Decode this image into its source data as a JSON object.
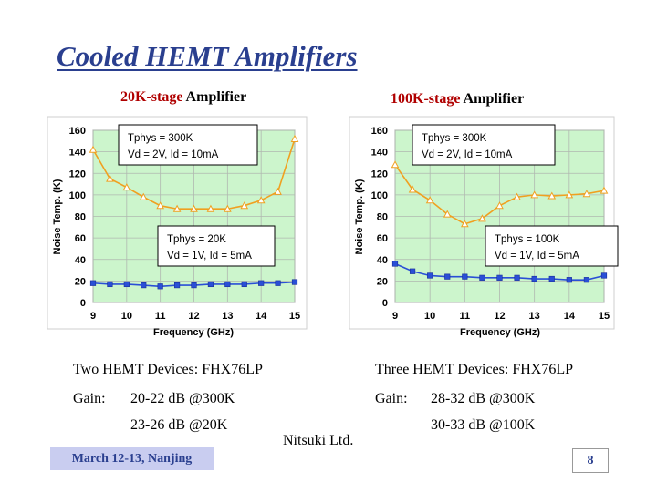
{
  "page": {
    "title": "Cooled HEMT Amplifiers",
    "footer_left": "March 12-13, Nanjing",
    "footer_center": "Nitsuki Ltd.",
    "page_number": "8"
  },
  "left": {
    "stage_title_a": "20K-stage",
    "stage_title_b": " Amplifier",
    "devices": "Two HEMT Devices: FHX76LP",
    "gain_label": "Gain:",
    "gain_1": "20-22 dB @300K",
    "gain_2": "23-26 dB @20K"
  },
  "right": {
    "stage_title_a": "100K-stage",
    "stage_title_b": "  Amplifier",
    "devices": "Three HEMT Devices:  FHX76LP",
    "gain_label": "Gain:",
    "gain_1": "28-32 dB @300K",
    "gain_2": "30-33 dB @100K"
  },
  "colors": {
    "plot_bg": "#ccf5cc",
    "orange": "#f0a020",
    "blue": "#2a4fd6",
    "title": "#2a3f8f",
    "stage_title": "#b00000"
  },
  "chart_data": [
    {
      "type": "line",
      "xlabel": "Frequency (GHz)",
      "ylabel": "Noise Temp. (K)",
      "xlim": [
        9,
        15
      ],
      "ylim": [
        0,
        160
      ],
      "xticks": [
        "9",
        "10",
        "11",
        "12",
        "13",
        "14",
        "15"
      ],
      "yticks": [
        "0",
        "20",
        "40",
        "60",
        "80",
        "100",
        "120",
        "140",
        "160"
      ],
      "grid": true,
      "series": [
        {
          "x": [
            9.0,
            9.5,
            10.0,
            10.5,
            11.0,
            11.5,
            12.0,
            12.5,
            13.0,
            13.5,
            14.0,
            14.5,
            15.0
          ],
          "y": [
            142,
            115,
            107,
            98,
            90,
            87,
            87,
            87,
            87,
            90,
            95,
            103,
            152
          ],
          "color": "#f0a020",
          "marker": "triangle"
        },
        {
          "x": [
            9.0,
            9.5,
            10.0,
            10.5,
            11.0,
            11.5,
            12.0,
            12.5,
            13.0,
            13.5,
            14.0,
            14.5,
            15.0
          ],
          "y": [
            18,
            17,
            17,
            16,
            15,
            16,
            16,
            17,
            17,
            17,
            18,
            18,
            19
          ],
          "color": "#2a4fd6",
          "marker": "square"
        }
      ],
      "annotations": [
        {
          "line1": "Tphys = 300K",
          "line2": "Vd = 2V, Id = 10mA"
        },
        {
          "line1": "Tphys = 20K",
          "line2": "Vd = 1V, Id = 5mA"
        }
      ]
    },
    {
      "type": "line",
      "xlabel": "Frequency (GHz)",
      "ylabel": "Noise Temp. (K)",
      "xlim": [
        9,
        15
      ],
      "ylim": [
        0,
        160
      ],
      "xticks": [
        "9",
        "10",
        "11",
        "12",
        "13",
        "14",
        "15"
      ],
      "yticks": [
        "0",
        "20",
        "40",
        "60",
        "80",
        "100",
        "120",
        "140",
        "160"
      ],
      "grid": true,
      "series": [
        {
          "x": [
            9.0,
            9.5,
            10.0,
            10.5,
            11.0,
            11.5,
            12.0,
            12.5,
            13.0,
            13.5,
            14.0,
            14.5,
            15.0
          ],
          "y": [
            128,
            105,
            95,
            82,
            73,
            78,
            90,
            98,
            100,
            99,
            100,
            101,
            104
          ],
          "color": "#f0a020",
          "marker": "triangle"
        },
        {
          "x": [
            9.0,
            9.5,
            10.0,
            10.5,
            11.0,
            11.5,
            12.0,
            12.5,
            13.0,
            13.5,
            14.0,
            14.5,
            15.0
          ],
          "y": [
            36,
            29,
            25,
            24,
            24,
            23,
            23,
            23,
            22,
            22,
            21,
            21,
            25
          ],
          "color": "#2a4fd6",
          "marker": "square"
        }
      ],
      "annotations": [
        {
          "line1": "Tphys = 300K",
          "line2": "Vd = 2V, Id = 10mA"
        },
        {
          "line1": "Tphys = 100K",
          "line2": "Vd = 1V, Id = 5mA"
        }
      ]
    }
  ]
}
